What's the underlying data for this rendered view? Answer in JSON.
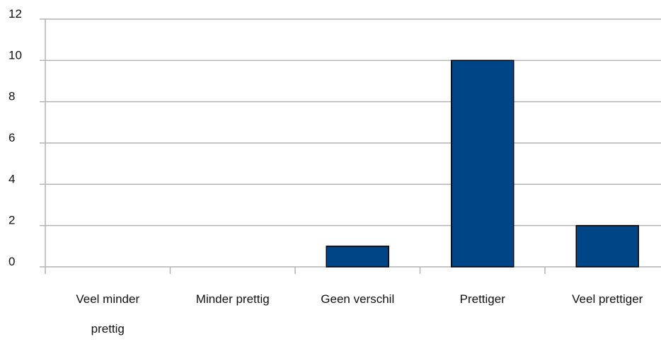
{
  "chart_data": {
    "type": "bar",
    "categories": [
      [
        "Veel minder",
        "prettig"
      ],
      [
        "Minder prettig"
      ],
      [
        "Geen verschil"
      ],
      [
        "Prettiger"
      ],
      [
        "Veel prettiger"
      ]
    ],
    "values": [
      0,
      0,
      1,
      10,
      2
    ],
    "ylim": [
      0,
      12
    ],
    "yticks": [
      "0",
      "2",
      "4",
      "6",
      "8",
      "10",
      "12"
    ],
    "grid": true,
    "legend": "none",
    "colors": {
      "bar": "#004586",
      "bar_stroke": "#000000",
      "grid": "#b3b3b3",
      "axis": "#b3b3b3"
    }
  }
}
